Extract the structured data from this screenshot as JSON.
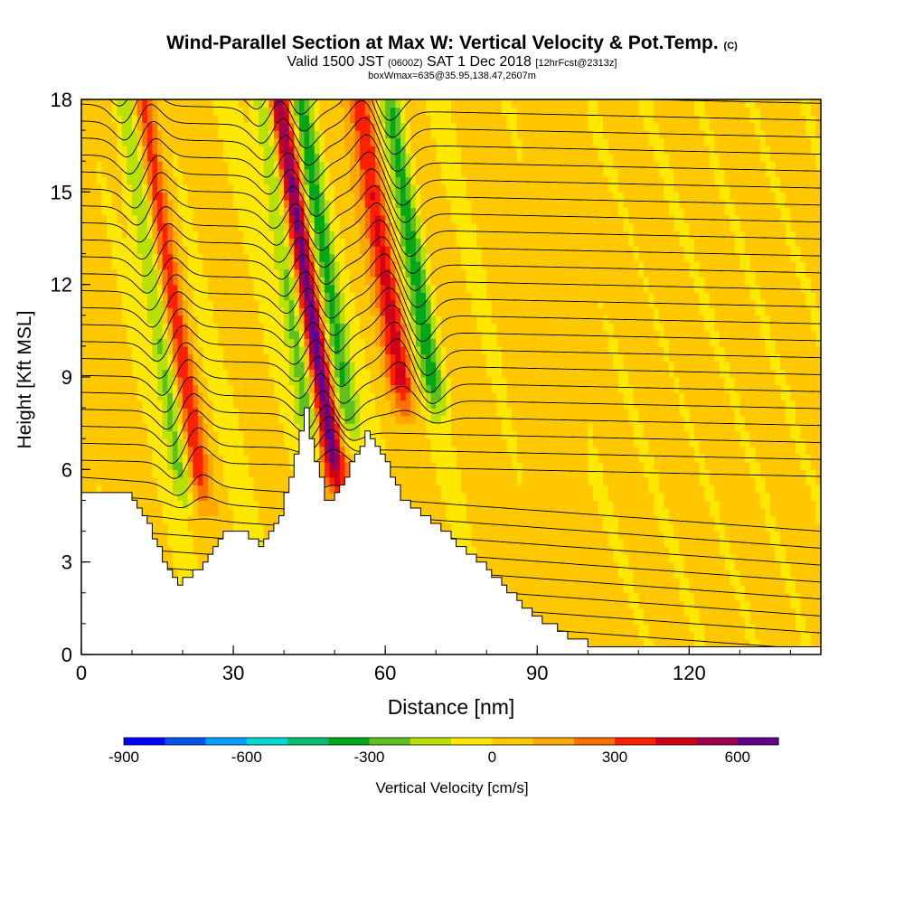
{
  "title": {
    "main": "Wind-Parallel Section at Max W: Vertical Velocity & Pot.Temp.",
    "copyright": "(C)",
    "valid_prefix": "Valid 1500 JST",
    "valid_utc": "(0600Z)",
    "valid_date": "SAT 1 Dec 2018",
    "forecast": "[12hrFcst@2313z]",
    "box_info": "boxWmax=635@35.95,138.47,2607m"
  },
  "colorbar": {
    "label": "Vertical Velocity [cm/s]",
    "tick_labels": [
      "-900",
      "-600",
      "-300",
      "0",
      "300",
      "600"
    ],
    "tick_values": [
      -900,
      -600,
      -300,
      0,
      300,
      600
    ],
    "colors": [
      "#0000ff",
      "#0055ee",
      "#00a0ff",
      "#00d8d0",
      "#00c070",
      "#00a818",
      "#60c020",
      "#b8e000",
      "#ffe800",
      "#ffc800",
      "#ffa800",
      "#ff7000",
      "#ff2000",
      "#d00018",
      "#a00050",
      "#600090"
    ],
    "bin_start": -900,
    "bin_width": 100
  },
  "chart_data": {
    "type": "heatmap",
    "xlabel": "Distance [nm]",
    "ylabel": "Height [Kft MSL]",
    "xlim": [
      0,
      146
    ],
    "ylim": [
      0,
      18
    ],
    "xticks": [
      0,
      30,
      60,
      90,
      120
    ],
    "yticks": [
      0,
      3,
      6,
      9,
      12,
      15,
      18
    ],
    "field": "Vertical Velocity [cm/s]",
    "contours": "Potential Temperature",
    "terrain_profile": {
      "x": [
        0,
        9,
        13,
        16,
        19,
        23,
        27,
        31,
        35,
        39,
        42,
        44,
        46,
        48,
        50,
        53,
        56,
        59,
        63,
        67,
        72,
        77,
        82,
        88,
        95,
        100,
        104,
        110,
        120,
        146
      ],
      "height": [
        5.3,
        5.3,
        4.2,
        3.0,
        2.3,
        2.8,
        3.8,
        4.1,
        3.6,
        4.5,
        6.5,
        7.9,
        6.3,
        5.0,
        5.2,
        6.2,
        7.2,
        6.5,
        5.0,
        4.5,
        3.9,
        3.2,
        2.4,
        1.4,
        0.7,
        0.3,
        0.3,
        0.3,
        0.3,
        0.3
      ]
    },
    "updraft_bands": [
      {
        "x": 21,
        "bottom": 4.5,
        "w_max": 350
      },
      {
        "x": 48,
        "bottom": 5.0,
        "w_max": 635
      },
      {
        "x": 64,
        "bottom": 7.5,
        "w_max": 400
      }
    ],
    "downdraft_bands": [
      {
        "x": 18,
        "bottom": 4.5,
        "w_min": -300
      },
      {
        "x": 45,
        "bottom": 6.0,
        "w_min": -350
      },
      {
        "x": 52,
        "bottom": 6.5,
        "w_min": -350
      },
      {
        "x": 70,
        "bottom": 7.5,
        "w_min": -350
      }
    ]
  }
}
